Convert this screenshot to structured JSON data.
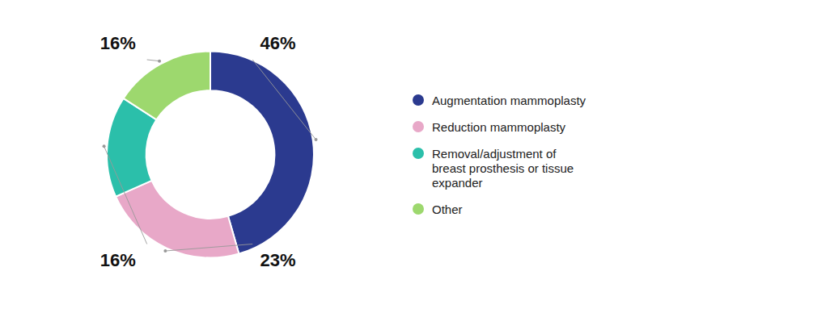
{
  "chart_data": {
    "type": "donut",
    "categories": [
      "Augmentation mammoplasty",
      "Reduction mammoplasty",
      "Removal/adjustment of\nbreast prosthesis or tissue\nexpander",
      "Other"
    ],
    "values": [
      46,
      23,
      16,
      16
    ],
    "value_labels": [
      "46%",
      "23%",
      "16%",
      "16%"
    ],
    "colors": [
      "#2B3A8F",
      "#E8A8C8",
      "#2BBFAA",
      "#9DD86E"
    ],
    "data_labels": true,
    "legend": "right"
  }
}
